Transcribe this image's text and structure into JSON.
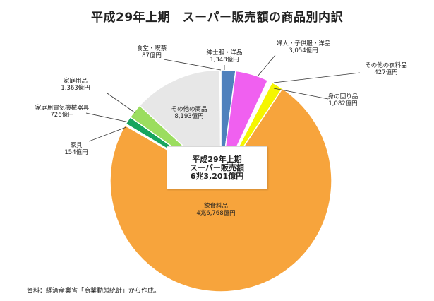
{
  "chart_data": {
    "type": "pie",
    "title": "平成29年上期　スーパー販売額の商品別内訳",
    "slices": [
      {
        "label": "紳士服・洋品",
        "value_label": "1,348億円",
        "value": 1348,
        "color": "#4f81bd"
      },
      {
        "label": "婦人・子供服・洋品",
        "value_label": "3,054億円",
        "value": 3054,
        "color": "#f060f0"
      },
      {
        "label": "その他の衣料品",
        "value_label": "427億円",
        "value": 427,
        "color": "#ffffff"
      },
      {
        "label": "身の回り品",
        "value_label": "1,082億円",
        "value": 1082,
        "color": "#f5f500"
      },
      {
        "label": "飲食料品",
        "value_label": "4兆6,768億円",
        "value": 46768,
        "color": "#f7a43c"
      },
      {
        "label": "家具",
        "value_label": "154億円",
        "value": 154,
        "color": "#ffffff"
      },
      {
        "label": "家庭用電気機械器具",
        "value_label": "726億円",
        "value": 726,
        "color": "#17a55e"
      },
      {
        "label": "家庭用品",
        "value_label": "1,363億円",
        "value": 1363,
        "color": "#9bdd5f"
      },
      {
        "label": "その他の商品",
        "value_label": "8,193億円",
        "value": 8193,
        "color": "#e7e7e7"
      },
      {
        "label": "食堂・喫茶",
        "value_label": "87億円",
        "value": 87,
        "color": "#ffffff"
      }
    ],
    "center_label": {
      "line1": "平成29年上期",
      "line2": "スーパー販売額",
      "line3": "6兆3,201億円"
    },
    "source": "資料：経済産業省「商業動態統計」から作成。"
  }
}
